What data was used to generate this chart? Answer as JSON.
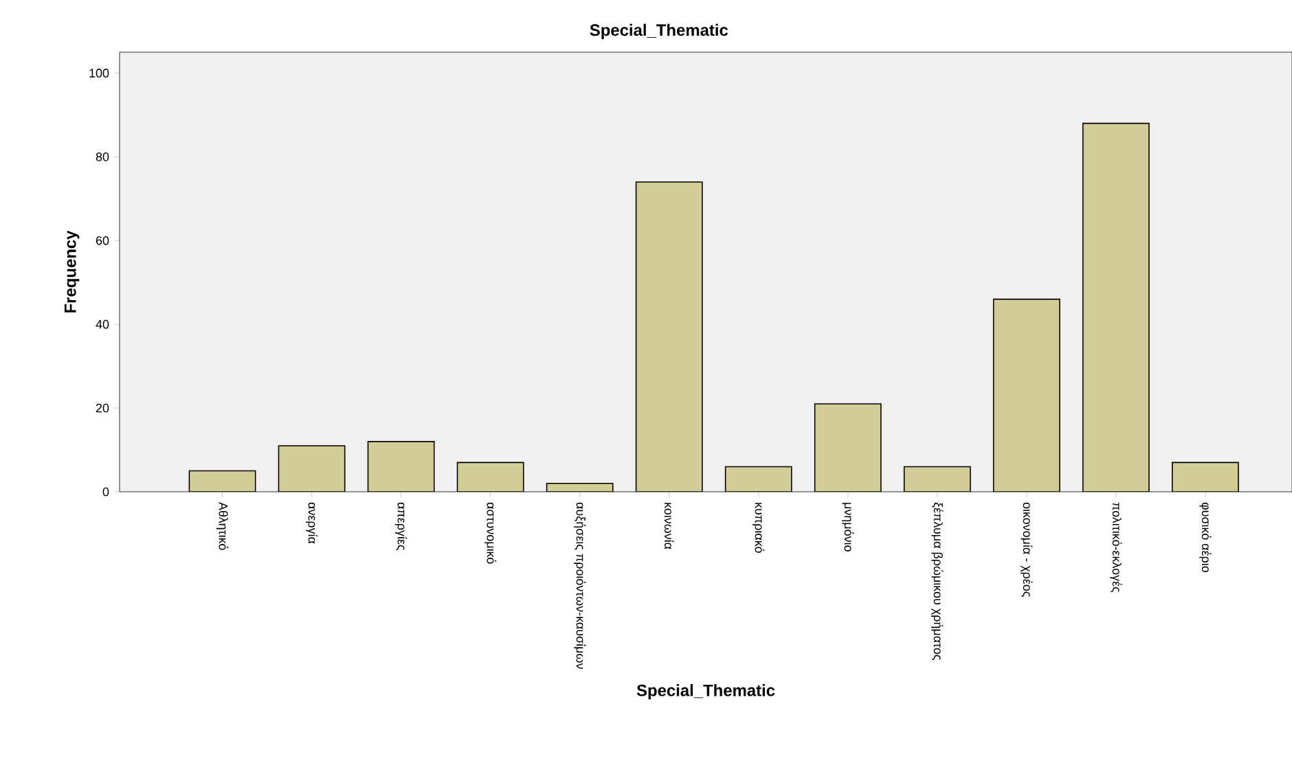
{
  "chart_data": {
    "type": "bar",
    "title": "Special_Thematic",
    "xlabel": "Special_Thematic",
    "ylabel": "Frequency",
    "categories": [
      "Αθλητικό",
      "ανεργία",
      "απεργίες",
      "αστυνομικό",
      "αυξήσεις προιόντων-καυσίμων",
      "κοινωνία",
      "κυπριακό",
      "μνημόνιο",
      "ξέπλυμα βρώμικου χρήματος",
      "οικονομία - χρέος",
      "πολιτικό-εκλογές",
      "φυσικό αέριο"
    ],
    "values": [
      5,
      11,
      12,
      7,
      2,
      74,
      6,
      21,
      6,
      46,
      88,
      7
    ],
    "color": "#d3ce97",
    "ylim": [
      0,
      105
    ],
    "yticks": [
      0,
      20,
      40,
      60,
      80,
      100
    ]
  }
}
